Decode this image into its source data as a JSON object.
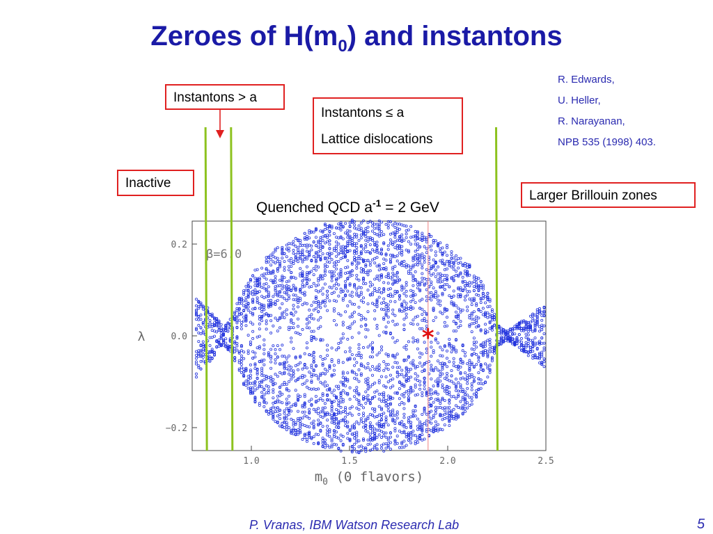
{
  "title": {
    "main": "Zeroes of H(m",
    "sub": "0",
    "tail": ") and instantons"
  },
  "references": [
    "R. Edwards,",
    "U. Heller,",
    "R. Narayanan,",
    "NPB 535 (1998) 403."
  ],
  "labels": {
    "instantons_gt": "Instantons > a",
    "instantons_le_line1": "Instantons ≤ a",
    "instantons_le_line2": "Lattice dislocations",
    "inactive": "Inactive",
    "brillouin": "Larger Brillouin zones"
  },
  "plot_title": {
    "pre": "Quenched QCD a",
    "sup": "-1",
    "post": " = 2 GeV"
  },
  "colors": {
    "title": "#1a1aa6",
    "box_border": "#e02020",
    "vline": "#8dc21f",
    "points": "#2233dd",
    "star": "#e01010"
  },
  "chart_data": {
    "type": "scatter",
    "xlabel": "m",
    "xlabel_sub": "0",
    "xlabel_tail": " (0 flavors)",
    "ylabel": "λ",
    "annotation": "β=6.0",
    "xlim": [
      0.7,
      2.5
    ],
    "ylim": [
      -0.25,
      0.25
    ],
    "xticks": [
      {
        "v": 1.0,
        "label": "1.0"
      },
      {
        "v": 1.5,
        "label": "1.5"
      },
      {
        "v": 2.0,
        "label": "2.0"
      },
      {
        "v": 2.5,
        "label": "2.5"
      }
    ],
    "yticks": [
      {
        "v": 0.2,
        "label": "0.2"
      },
      {
        "v": 0.0,
        "label": "0.0"
      },
      {
        "v": -0.2,
        "label": "−0.2"
      }
    ],
    "vertical_lines": [
      0.77,
      0.9,
      2.25
    ],
    "marker_line_x": 1.9,
    "star": {
      "x": 1.9,
      "y": 0.0
    }
  },
  "footer": "P. Vranas, IBM Watson Research Lab",
  "page_number": "5"
}
